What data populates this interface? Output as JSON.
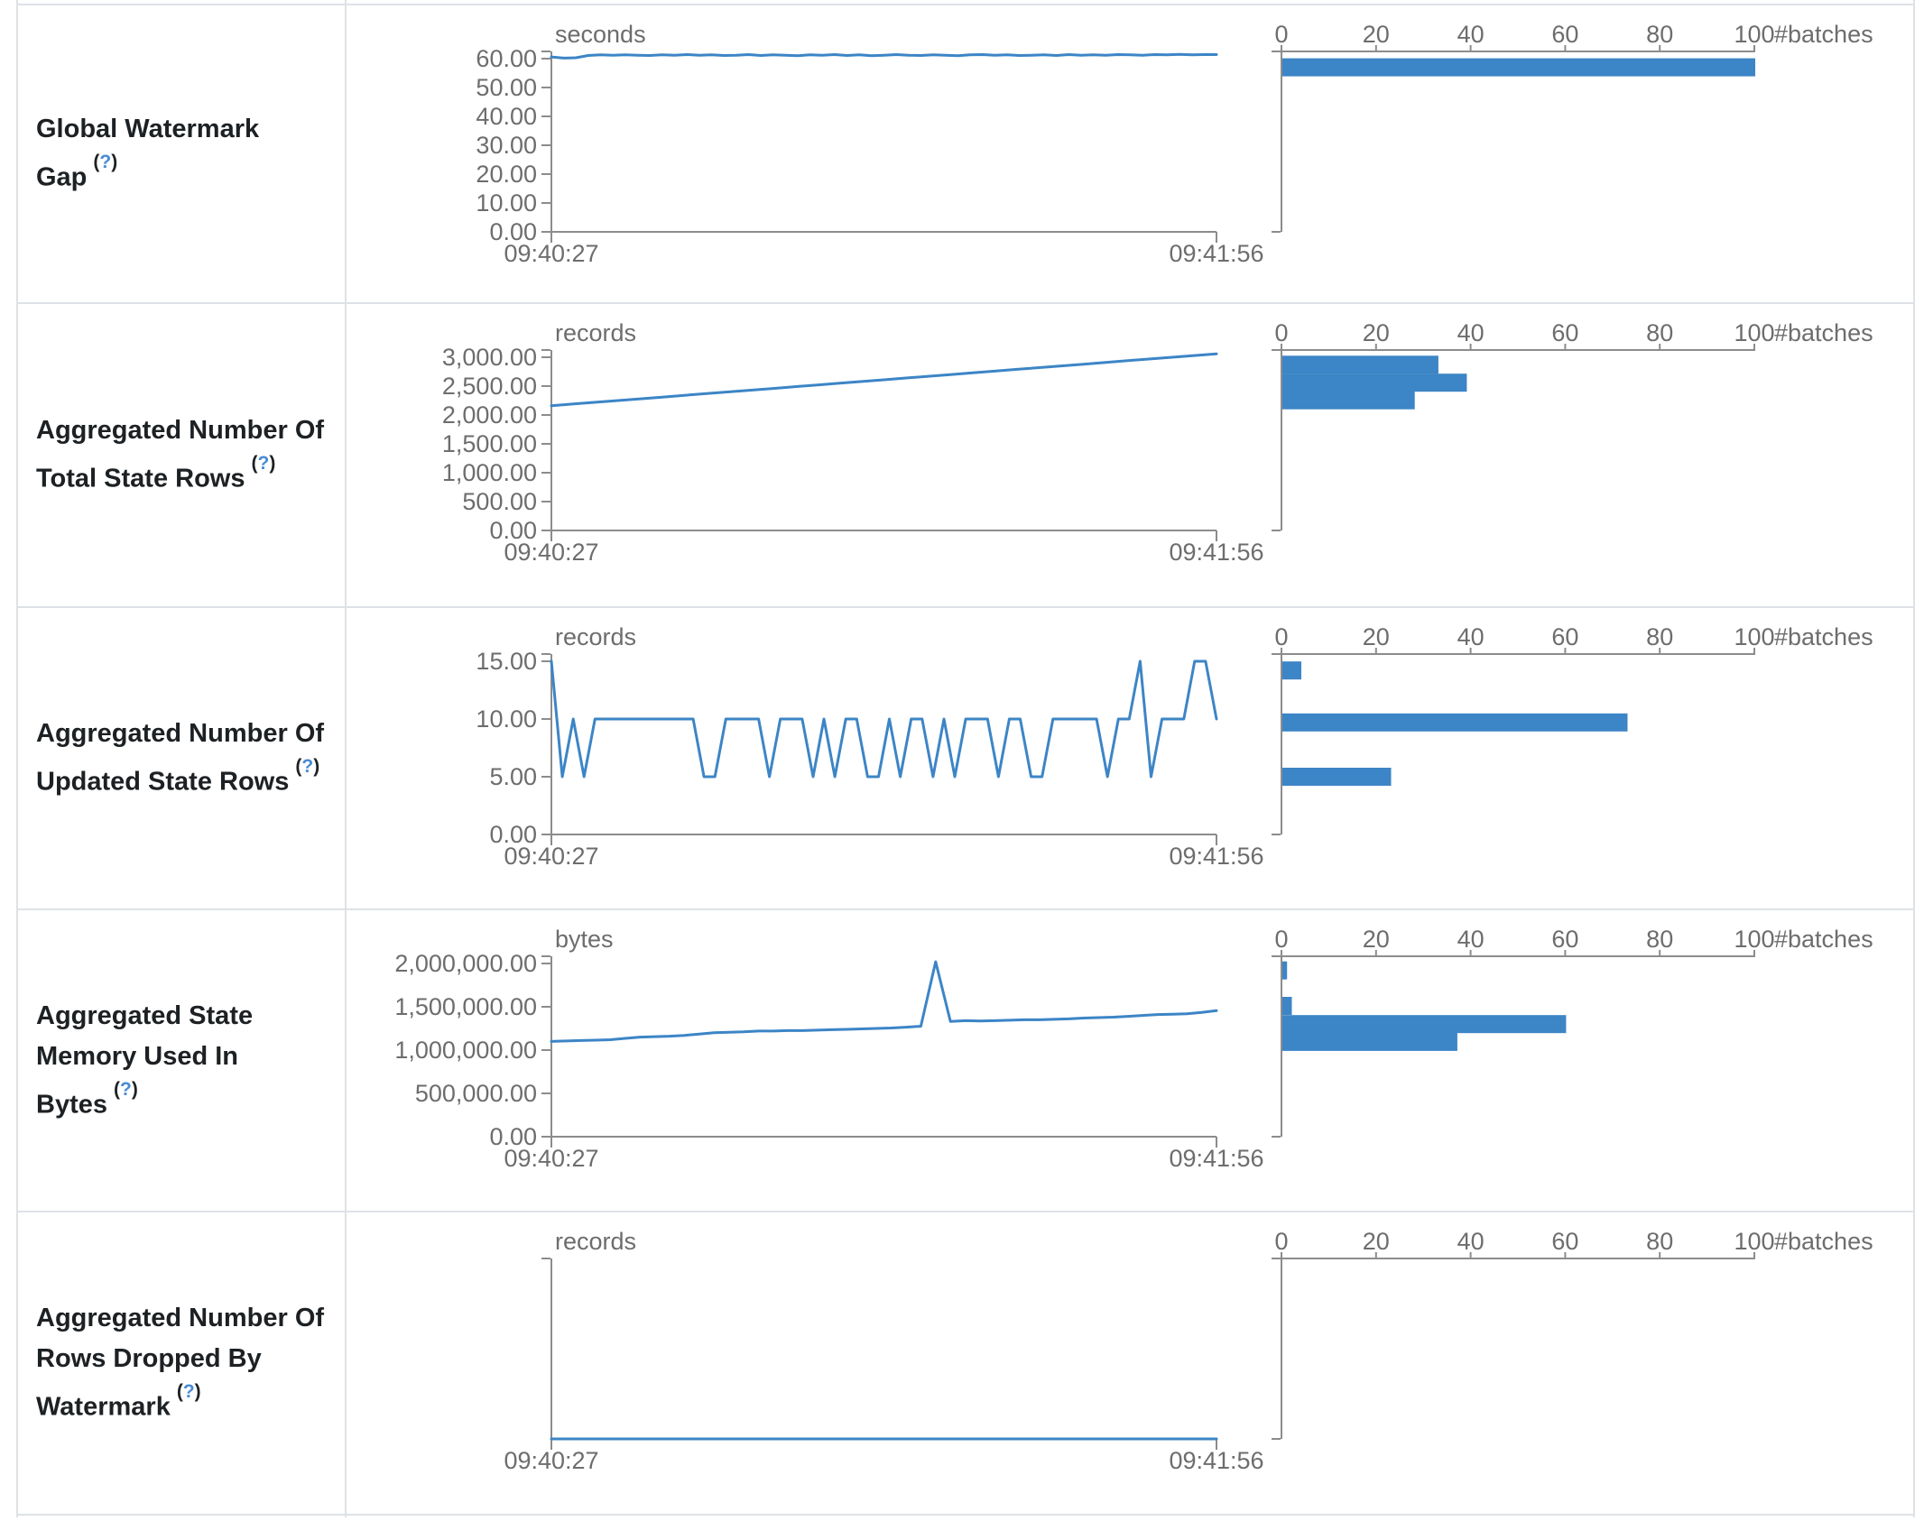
{
  "page": {
    "background": "#ffffff"
  },
  "help": {
    "paren_open": "(",
    "q": "?",
    "paren_close": ")"
  },
  "colors": {
    "accent_blue": "#3c85c6",
    "axis_grey": "#8c8c8c",
    "tick_text": "#6d6d6d",
    "label_text": "#1d2124",
    "border": "#dee2e6",
    "help_blue": "#4a8bd4"
  },
  "rows": [
    {
      "label": "Global Watermark Gap"
    },
    {
      "label": "Aggregated Number Of Total State Rows"
    },
    {
      "label": "Aggregated Number Of Updated State Rows"
    },
    {
      "label": "Aggregated State Memory Used In Bytes"
    },
    {
      "label": "Aggregated Number Of Rows Dropped By Watermark"
    }
  ],
  "histogram_axis": {
    "ticks": [
      0,
      20,
      40,
      60,
      80,
      100
    ],
    "label": "#batches",
    "max": 100
  },
  "chart_data": [
    {
      "type": "line+histogram",
      "metric": "Global Watermark Gap",
      "title": "seconds",
      "x_labels": [
        "09:40:27",
        "09:41:56"
      ],
      "y_top_value": 60,
      "y_ticks": [
        {
          "label": "60.00",
          "value": 60
        },
        {
          "label": "50.00",
          "value": 50
        },
        {
          "label": "40.00",
          "value": 40
        },
        {
          "label": "30.00",
          "value": 30
        },
        {
          "label": "20.00",
          "value": 20
        },
        {
          "label": "10.00",
          "value": 10
        },
        {
          "label": "0.00",
          "value": 0
        }
      ],
      "values": [
        60.6,
        60.2,
        60.3,
        61.1,
        61.3,
        61.2,
        61.3,
        61.2,
        61.1,
        61.3,
        61.2,
        61.4,
        61.2,
        61.3,
        61.1,
        61.2,
        61.4,
        61.1,
        61.3,
        61.2,
        61.0,
        61.3,
        61.2,
        61.4,
        61.1,
        61.3,
        61.0,
        61.2,
        61.4,
        61.2,
        61.1,
        61.3,
        61.2,
        61.0,
        61.3,
        61.4,
        61.2,
        61.3,
        61.1,
        61.2,
        61.3,
        61.1,
        61.4,
        61.2,
        61.3,
        61.2,
        61.4,
        61.3,
        61.2,
        61.4,
        61.3,
        61.5,
        61.3,
        61.4,
        61.4
      ],
      "histogram_bins": [
        {
          "value_bin": 57,
          "batches": 100
        }
      ]
    },
    {
      "type": "line+histogram",
      "metric": "Aggregated Number Of Total State Rows",
      "title": "records",
      "x_labels": [
        "09:40:27",
        "09:41:56"
      ],
      "y_top_value": 3000,
      "y_ticks": [
        {
          "label": "3,000.00",
          "value": 3000
        },
        {
          "label": "2,500.00",
          "value": 2500
        },
        {
          "label": "2,000.00",
          "value": 2000
        },
        {
          "label": "1,500.00",
          "value": 1500
        },
        {
          "label": "1,000.00",
          "value": 1000
        },
        {
          "label": "500.00",
          "value": 500
        },
        {
          "label": "0.00",
          "value": 0
        }
      ],
      "values": [
        2160,
        2190,
        2220,
        2250,
        2280,
        2310,
        2340,
        2370,
        2400,
        2430,
        2460,
        2490,
        2520,
        2550,
        2580,
        2610,
        2640,
        2670,
        2700,
        2730,
        2760,
        2790,
        2820,
        2850,
        2880,
        2910,
        2940,
        2970,
        3000,
        3030,
        3060
      ],
      "histogram_bins": [
        {
          "value_bin": 2870,
          "batches": 33
        },
        {
          "value_bin": 2560,
          "batches": 39
        },
        {
          "value_bin": 2255,
          "batches": 28
        }
      ]
    },
    {
      "type": "line+histogram",
      "metric": "Aggregated Number Of Updated State Rows",
      "title": "records",
      "x_labels": [
        "09:40:27",
        "09:41:56"
      ],
      "y_top_value": 15,
      "y_ticks": [
        {
          "label": "15.00",
          "value": 15
        },
        {
          "label": "10.00",
          "value": 10
        },
        {
          "label": "5.00",
          "value": 5
        },
        {
          "label": "0.00",
          "value": 0
        }
      ],
      "values": [
        15,
        5,
        10,
        5,
        10,
        10,
        10,
        10,
        10,
        10,
        10,
        10,
        10,
        10,
        5,
        5,
        10,
        10,
        10,
        10,
        5,
        10,
        10,
        10,
        5,
        10,
        5,
        10,
        10,
        5,
        5,
        10,
        5,
        10,
        10,
        5,
        10,
        5,
        10,
        10,
        10,
        5,
        10,
        10,
        5,
        5,
        10,
        10,
        10,
        10,
        10,
        5,
        10,
        10,
        15,
        5,
        10,
        10,
        10,
        15,
        15,
        10
      ],
      "histogram_bins": [
        {
          "value_bin": 14.2,
          "batches": 4
        },
        {
          "value_bin": 9.7,
          "batches": 73
        },
        {
          "value_bin": 5,
          "batches": 23
        }
      ]
    },
    {
      "type": "line+histogram",
      "metric": "Aggregated State Memory Used In Bytes",
      "title": "bytes",
      "x_labels": [
        "09:40:27",
        "09:41:56"
      ],
      "y_top_value": 2000000,
      "y_ticks": [
        {
          "label": "2,000,000.00",
          "value": 2000000
        },
        {
          "label": "1,500,000.00",
          "value": 1500000
        },
        {
          "label": "1,000,000.00",
          "value": 1000000
        },
        {
          "label": "500,000.00",
          "value": 500000
        },
        {
          "label": "0.00",
          "value": 0
        }
      ],
      "values": [
        1100000,
        1105000,
        1110000,
        1115000,
        1120000,
        1135000,
        1150000,
        1155000,
        1160000,
        1170000,
        1185000,
        1200000,
        1205000,
        1210000,
        1220000,
        1220000,
        1225000,
        1225000,
        1230000,
        1235000,
        1240000,
        1245000,
        1250000,
        1255000,
        1265000,
        1275000,
        2020000,
        1330000,
        1340000,
        1335000,
        1340000,
        1345000,
        1350000,
        1350000,
        1355000,
        1360000,
        1370000,
        1375000,
        1380000,
        1390000,
        1400000,
        1410000,
        1415000,
        1420000,
        1435000,
        1455000
      ],
      "histogram_bins": [
        {
          "value_bin": 1920000,
          "batches": 1
        },
        {
          "value_bin": 1510000,
          "batches": 2
        },
        {
          "value_bin": 1300000,
          "batches": 60
        },
        {
          "value_bin": 1095000,
          "batches": 37
        }
      ]
    },
    {
      "type": "line+histogram",
      "metric": "Aggregated Number Of Rows Dropped By Watermark",
      "title": "records",
      "x_labels": [
        "09:40:27",
        "09:41:56"
      ],
      "y_top_value": 1,
      "y_ticks": [],
      "values": [
        0,
        0,
        0,
        0,
        0,
        0,
        0,
        0,
        0,
        0,
        0,
        0,
        0,
        0,
        0,
        0,
        0,
        0,
        0,
        0,
        0,
        0,
        0,
        0,
        0,
        0,
        0,
        0,
        0,
        0,
        0
      ],
      "histogram_bins": []
    }
  ]
}
